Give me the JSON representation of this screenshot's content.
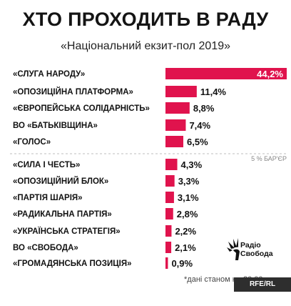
{
  "chart_data": {
    "type": "bar",
    "title": "ХТО ПРОХОДИТЬ В РАДУ",
    "subtitle": "«Національний екзит-пол 2019»",
    "categories": [
      "«СЛУГА НАРОДУ»",
      "«ОПОЗИЦІЙНА ПЛАТФОРМА»",
      "«ЄВРОПЕЙСЬКА СОЛІДАРНІСТЬ»",
      "ВО «БАТЬКІВЩИНА»",
      "«ГОЛОС»",
      "«СИЛА І ЧЕСТЬ»",
      "«ОПОЗИЦІЙНИЙ БЛОК»",
      "«ПАРТІЯ ШАРІЯ»",
      "«РАДИКАЛЬНА ПАРТІЯ»",
      "«УКРАЇНСЬКА СТРАТЕГІЯ»",
      "ВО «СВОБОДА»",
      "«ГРОМАДЯНСЬКА ПОЗИЦІЯ»"
    ],
    "values": [
      44.2,
      11.4,
      8.8,
      7.4,
      6.5,
      4.3,
      3.3,
      3.1,
      2.8,
      2.2,
      2.1,
      0.9
    ],
    "value_labels": [
      "44,2%",
      "11,4%",
      "8,8%",
      "7,4%",
      "6,5%",
      "4,3%",
      "3,3%",
      "3,1%",
      "2,8%",
      "2,2%",
      "2,1%",
      "0,9%"
    ],
    "threshold": 5,
    "threshold_label": "5 % БАР'ЄР",
    "orientation": "horizontal",
    "color": "#e0134d",
    "grid": false
  },
  "logo": {
    "line1": "Радіо",
    "line2": "Свобода"
  },
  "note": "*дані станом на 20:00",
  "credit": "RFE/RL Graphics"
}
